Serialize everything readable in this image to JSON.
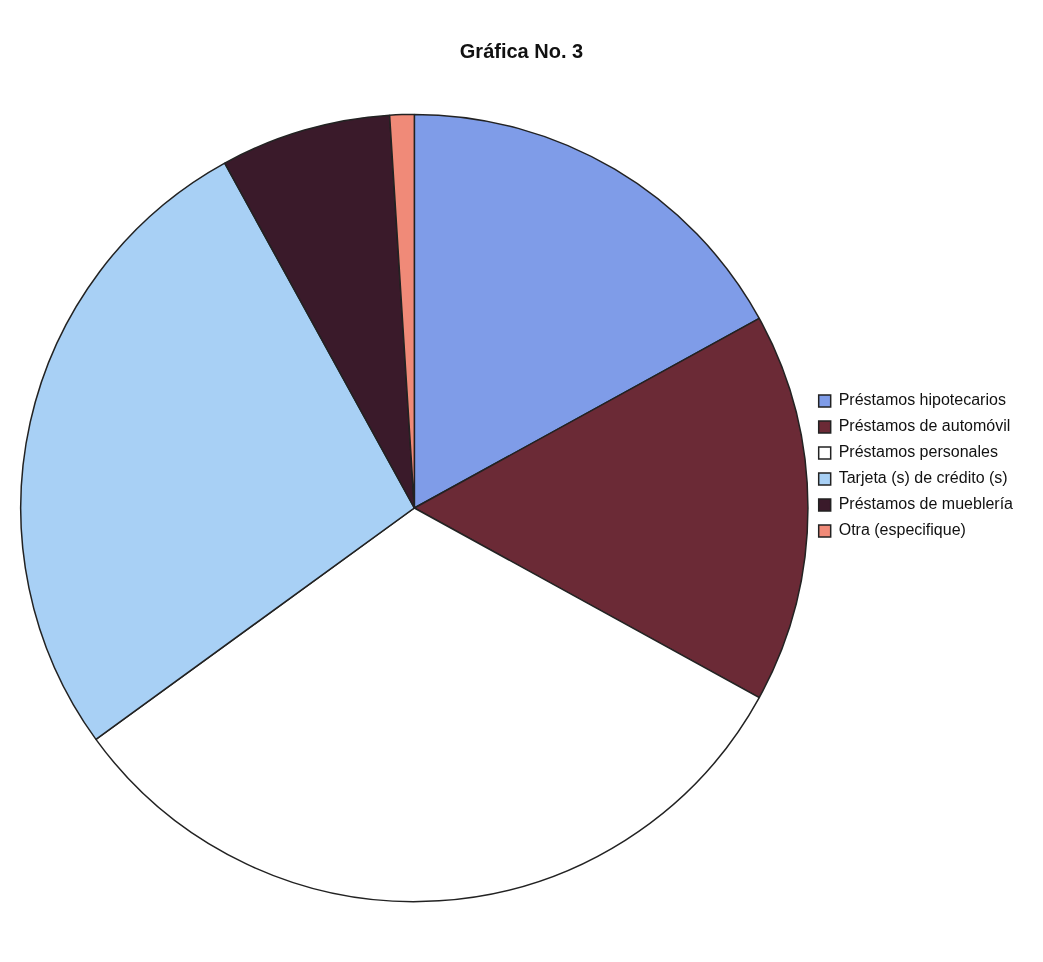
{
  "chart_data": {
    "type": "pie",
    "title": "Gráfica No. 3",
    "categories": [
      "Préstamos hipotecarios",
      "Préstamos de automóvil",
      "Préstamos personales",
      "Tarjeta (s) de crédito (s)",
      "Préstamos de mueblería",
      "Otra (especifique)"
    ],
    "values": [
      17,
      16,
      32,
      27,
      7,
      1
    ],
    "colors": [
      "#7f9ce8",
      "#6b2a36",
      "#ffffff",
      "#a8d0f5",
      "#3a1a2a",
      "#f08a78"
    ],
    "legend": "right"
  }
}
